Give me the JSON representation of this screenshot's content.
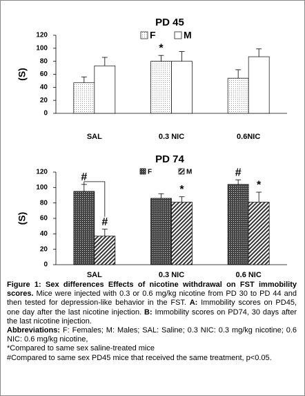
{
  "chart_data": [
    {
      "type": "bar",
      "title": "PD  45",
      "ylabel": "(S)",
      "categories": [
        "SAL",
        "0.3 NIC",
        "0.6NIC"
      ],
      "series": [
        {
          "name": "F",
          "color": "#000000",
          "pattern": "dots",
          "values": [
            47,
            80,
            54
          ],
          "errors": [
            9,
            9,
            13
          ],
          "annotations": [
            null,
            "*",
            null
          ]
        },
        {
          "name": "M",
          "color": "#000000",
          "pattern": "none",
          "values": [
            73,
            80,
            87
          ],
          "errors": [
            13,
            15,
            12
          ],
          "annotations": [
            null,
            null,
            null
          ]
        }
      ],
      "ylim": [
        0,
        120
      ],
      "yticks": [
        0,
        20,
        40,
        60,
        80,
        100,
        120
      ],
      "grid": false
    },
    {
      "type": "bar",
      "title": "PD 74",
      "ylabel": "(S)",
      "categories": [
        "SAL",
        "0.3 NIC",
        "0.6 NIC"
      ],
      "series": [
        {
          "name": "F",
          "color": "#000000",
          "pattern": "crosshatch",
          "values": [
            95,
            86,
            104
          ],
          "errors": [
            9,
            6,
            6
          ],
          "annotations": [
            "#",
            null,
            "#"
          ]
        },
        {
          "name": "M",
          "color": "#000000",
          "pattern": "diagonal",
          "values": [
            37,
            81,
            81
          ],
          "errors": [
            9,
            7,
            13
          ],
          "annotations": [
            "#",
            "*",
            "*"
          ]
        }
      ],
      "ylim": [
        0,
        120
      ],
      "yticks": [
        0,
        20,
        40,
        60,
        80,
        100,
        120
      ],
      "grid": false
    }
  ],
  "caption": {
    "heading": "Figure 1: Sex differences Effects of nicotine withdrawal on FST immobility scores.",
    "body": "Mice were injected with 0.3 or 0.6 mg/kg nicotine from PD 30 to PD 44 and then tested for depression-like behavior in the FST.",
    "a_label": "A:",
    "a_text": "Immobility scores on PD45, one day after the last nicotine injection.",
    "b_label": "B:",
    "b_text": "Immobility scores on PD74, 30 days after the last nicotine injection.",
    "abbr_label": "Abbreviations:",
    "abbr_text": "F: Females; M: Males; SAL: Saline; 0.3 NIC: 0.3 mg/kg nicotine; 0.6 NIC: 0.6 mg/kg nicotine,",
    "note1": "*Compared to same sex saline-treated mice",
    "note2": "#Compared to same sex PD45 mice that received the same treatment, p<0.05."
  }
}
